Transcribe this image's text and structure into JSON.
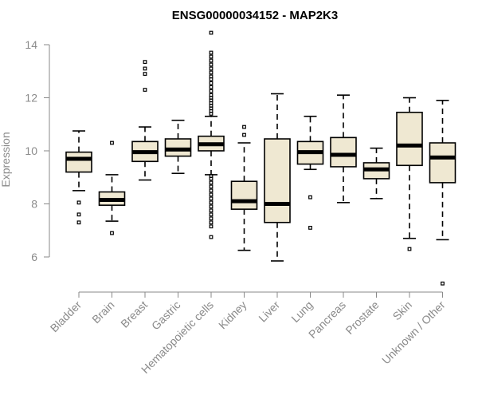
{
  "chart_data": {
    "type": "boxplot",
    "title": "ENSG00000034152 - MAP2K3",
    "xlabel": "",
    "ylabel": "Expression",
    "ylim": [
      5,
      14
    ],
    "yticks": [
      6,
      8,
      10,
      12,
      14
    ],
    "grid": false,
    "box_fill": "#efe8d2",
    "categories": [
      "Bladder",
      "Brain",
      "Breast",
      "Gastric",
      "Hematopoietic cells",
      "Kidney",
      "Liver",
      "Lung",
      "Pancreas",
      "Prostate",
      "Skin",
      "Unknown / Other"
    ],
    "boxes": [
      {
        "whisker_low": 8.5,
        "q1": 9.2,
        "median": 9.7,
        "q3": 9.95,
        "whisker_high": 10.75,
        "outliers": [
          8.05,
          7.6,
          7.3
        ]
      },
      {
        "whisker_low": 7.35,
        "q1": 7.95,
        "median": 8.15,
        "q3": 8.45,
        "whisker_high": 9.1,
        "outliers": [
          10.3,
          6.9
        ]
      },
      {
        "whisker_low": 8.9,
        "q1": 9.6,
        "median": 9.95,
        "q3": 10.35,
        "whisker_high": 10.9,
        "outliers": [
          13.35,
          13.1,
          12.9,
          12.3
        ]
      },
      {
        "whisker_low": 9.15,
        "q1": 9.8,
        "median": 10.05,
        "q3": 10.45,
        "whisker_high": 11.15,
        "outliers": []
      },
      {
        "whisker_low": 9.1,
        "q1": 10.0,
        "median": 10.25,
        "q3": 10.55,
        "whisker_high": 11.3,
        "outliers": [
          14.45,
          13.7,
          13.55,
          13.4,
          13.25,
          13.1,
          12.95,
          12.8,
          12.7,
          12.55,
          12.4,
          12.25,
          12.1,
          12.0,
          11.9,
          11.8,
          11.7,
          11.6,
          11.5,
          11.4,
          9.05,
          8.95,
          8.8,
          8.65,
          8.5,
          8.35,
          8.2,
          8.05,
          7.9,
          7.75,
          7.6,
          7.45,
          7.3,
          7.15,
          6.75
        ]
      },
      {
        "whisker_low": 6.25,
        "q1": 7.8,
        "median": 8.1,
        "q3": 8.85,
        "whisker_high": 10.3,
        "outliers": [
          10.9,
          10.6
        ]
      },
      {
        "whisker_low": 5.85,
        "q1": 7.3,
        "median": 8.0,
        "q3": 10.45,
        "whisker_high": 12.15,
        "outliers": []
      },
      {
        "whisker_low": 9.3,
        "q1": 9.5,
        "median": 9.95,
        "q3": 10.35,
        "whisker_high": 11.3,
        "outliers": [
          8.25,
          7.1
        ]
      },
      {
        "whisker_low": 8.05,
        "q1": 9.4,
        "median": 9.85,
        "q3": 10.5,
        "whisker_high": 12.1,
        "outliers": []
      },
      {
        "whisker_low": 8.2,
        "q1": 8.95,
        "median": 9.3,
        "q3": 9.55,
        "whisker_high": 10.1,
        "outliers": []
      },
      {
        "whisker_low": 6.7,
        "q1": 9.45,
        "median": 10.2,
        "q3": 11.45,
        "whisker_high": 12.0,
        "outliers": [
          6.3
        ]
      },
      {
        "whisker_low": 6.65,
        "q1": 8.8,
        "median": 9.75,
        "q3": 10.3,
        "whisker_high": 11.9,
        "outliers": [
          5.0
        ]
      }
    ]
  }
}
